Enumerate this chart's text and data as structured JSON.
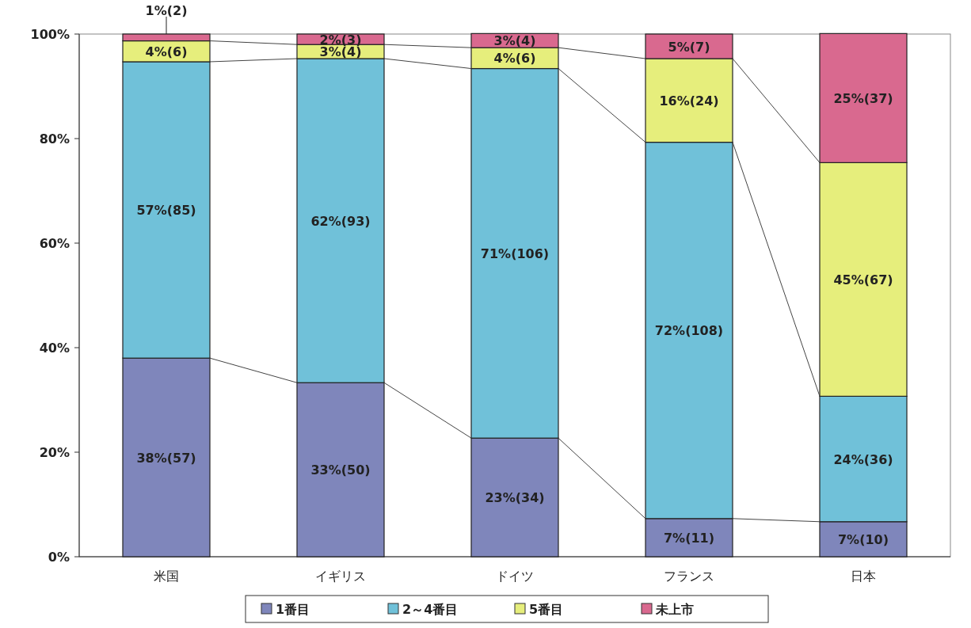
{
  "chart_data": {
    "type": "bar",
    "stacked": true,
    "categories": [
      "米国",
      "イギリス",
      "ドイツ",
      "フランス",
      "日本"
    ],
    "series": [
      {
        "name": "1番目",
        "color": "#7f86bb",
        "values": [
          38.0,
          33.3,
          22.7,
          7.3,
          6.7
        ],
        "value_labels": [
          "38%(57)",
          "33%(50)",
          "23%(34)",
          "7%(11)",
          "7%(10)"
        ]
      },
      {
        "name": "2～4番目",
        "color": "#70c1d9",
        "values": [
          56.7,
          62.0,
          70.7,
          72.0,
          24.0
        ],
        "value_labels": [
          "57%(85)",
          "62%(93)",
          "71%(106)",
          "72%(108)",
          "24%(36)"
        ]
      },
      {
        "name": "5番目",
        "color": "#e6ee7c",
        "values": [
          4.0,
          2.7,
          4.0,
          16.0,
          44.7
        ],
        "value_labels": [
          "4%(6)",
          "3%(4)",
          "4%(6)",
          "16%(24)",
          "45%(67)"
        ]
      },
      {
        "name": "未上市",
        "color": "#d9698f",
        "values": [
          1.3,
          2.0,
          2.7,
          4.7,
          24.7
        ],
        "value_labels": [
          "1%(2)",
          "2%(3)",
          "3%(4)",
          "5%(7)",
          "25%(37)"
        ]
      }
    ],
    "ylim": [
      0,
      100
    ],
    "yticks": [
      {
        "value": 0,
        "label": "0%"
      },
      {
        "value": 20,
        "label": "20%"
      },
      {
        "value": 40,
        "label": "40%"
      },
      {
        "value": 60,
        "label": "60%"
      },
      {
        "value": 80,
        "label": "80%"
      },
      {
        "value": 100,
        "label": "100%"
      }
    ],
    "legend": "bottom"
  }
}
